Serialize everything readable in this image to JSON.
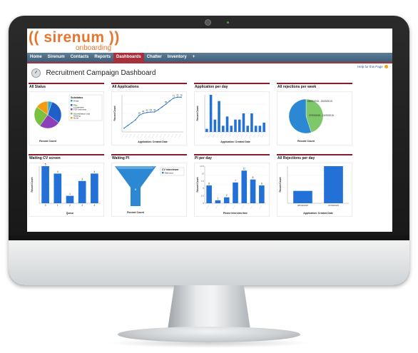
{
  "brand": {
    "name": "(( sirenum ))",
    "sub": "onboarding"
  },
  "nav": {
    "tabs": [
      {
        "label": "Home",
        "active": false
      },
      {
        "label": "Sirenum",
        "active": false
      },
      {
        "label": "Contacts",
        "active": false
      },
      {
        "label": "Reports",
        "active": false
      },
      {
        "label": "Dashboards",
        "active": true
      },
      {
        "label": "Chatter",
        "active": false
      },
      {
        "label": "Inventory",
        "active": false
      },
      {
        "label": "+",
        "active": false
      }
    ]
  },
  "help": "Help for this Page",
  "page_title": "Recruitment Campaign Dashboard",
  "colors": {
    "accent": "#a8303b",
    "bar": "#1f6fcb",
    "nav": "#4a6a84",
    "brand": "#e8752e"
  },
  "panels": [
    {
      "id": "p1",
      "title": "All Status"
    },
    {
      "id": "p2",
      "title": "All Applications"
    },
    {
      "id": "p3",
      "title": "Application per day"
    },
    {
      "id": "p4",
      "title": "All rejections per week"
    },
    {
      "id": "p5",
      "title": "Waiting CV screen"
    },
    {
      "id": "p6",
      "title": "Waiting PI"
    },
    {
      "id": "p7",
      "title": "PI per day"
    },
    {
      "id": "p8",
      "title": "All Rejections per day"
    }
  ],
  "chart_data": [
    {
      "type": "pie",
      "panel": "p1",
      "legend_title": "Substatus",
      "legend_placement": "right",
      "slices": [
        {
          "label": "Hired",
          "value": 5,
          "color": "#2aa7d8"
        },
        {
          "label": "Phone Interview",
          "value": 30,
          "color": "#1f5fc7"
        },
        {
          "label": "F2F Interview",
          "value": 25,
          "color": "#8b3fb8"
        },
        {
          "label": "Accreditation and Testing",
          "value": 25,
          "color": "#7ac142"
        },
        {
          "label": "None",
          "value": 15,
          "color": "#f39c12"
        }
      ],
      "xlabel": "Record Count"
    },
    {
      "type": "line",
      "panel": "p2",
      "ylabel": "Record Count",
      "xlabel": "Application: Created Date",
      "labels": [
        null,
        null,
        null,
        null,
        36,
        40,
        42,
        43,
        43,
        null,
        null,
        60,
        null,
        73,
        75,
        75
      ],
      "values": [
        8,
        14,
        20,
        26,
        36,
        40,
        42,
        43,
        43,
        48,
        54,
        60,
        67,
        73,
        75,
        75
      ]
    },
    {
      "type": "bar",
      "panel": "p3",
      "ylabel": "Record Count",
      "xlabel": "Application: Created Date",
      "values": [
        1,
        12,
        4,
        10,
        2,
        5,
        2,
        4,
        4,
        6,
        2,
        6,
        2,
        2,
        3
      ],
      "ymax": 12
    },
    {
      "type": "pie",
      "panel": "p4",
      "xlabel": "Record Count",
      "legend_placement": "right",
      "slices": [
        {
          "label": "09/09/2015 - 15/09/2015",
          "value": 45,
          "color": "#7ec86b"
        },
        {
          "label": "07/09/2015 - 13/09/2015",
          "value": 55,
          "color": "#2d88d4"
        }
      ]
    },
    {
      "type": "bar",
      "panel": "p5",
      "ylabel": "Record Count",
      "xlabel": "Queue",
      "categories": [
        "0",
        "1",
        "2",
        "3",
        "4"
      ],
      "values": [
        5,
        4,
        1,
        3,
        4
      ],
      "ymax": 5
    },
    {
      "type": "funnel",
      "panel": "p6",
      "xlabel": "Record Count",
      "legend_title": "CV interviewer",
      "legend": [
        "Mahmud"
      ],
      "values": [
        8
      ]
    },
    {
      "type": "bar",
      "panel": "p7",
      "ylabel": "Record Count",
      "xlabel": "Phone interview time",
      "yticks": [
        "12.5",
        "10",
        "7.5",
        "5",
        "2.5",
        "0"
      ],
      "values": [
        6,
        1,
        2,
        7,
        11,
        8,
        6
      ],
      "labels": [
        "6",
        "1",
        "2",
        "7",
        "11",
        "8",
        "6"
      ],
      "ymax": 12.5
    },
    {
      "type": "bar",
      "panel": "p8",
      "ylabel": "Record Count",
      "xlabel": "Application: Created Date",
      "categories": [
        "08/09/2015",
        "07/09/2015"
      ],
      "values": [
        2,
        6
      ],
      "ymax": 6
    }
  ]
}
